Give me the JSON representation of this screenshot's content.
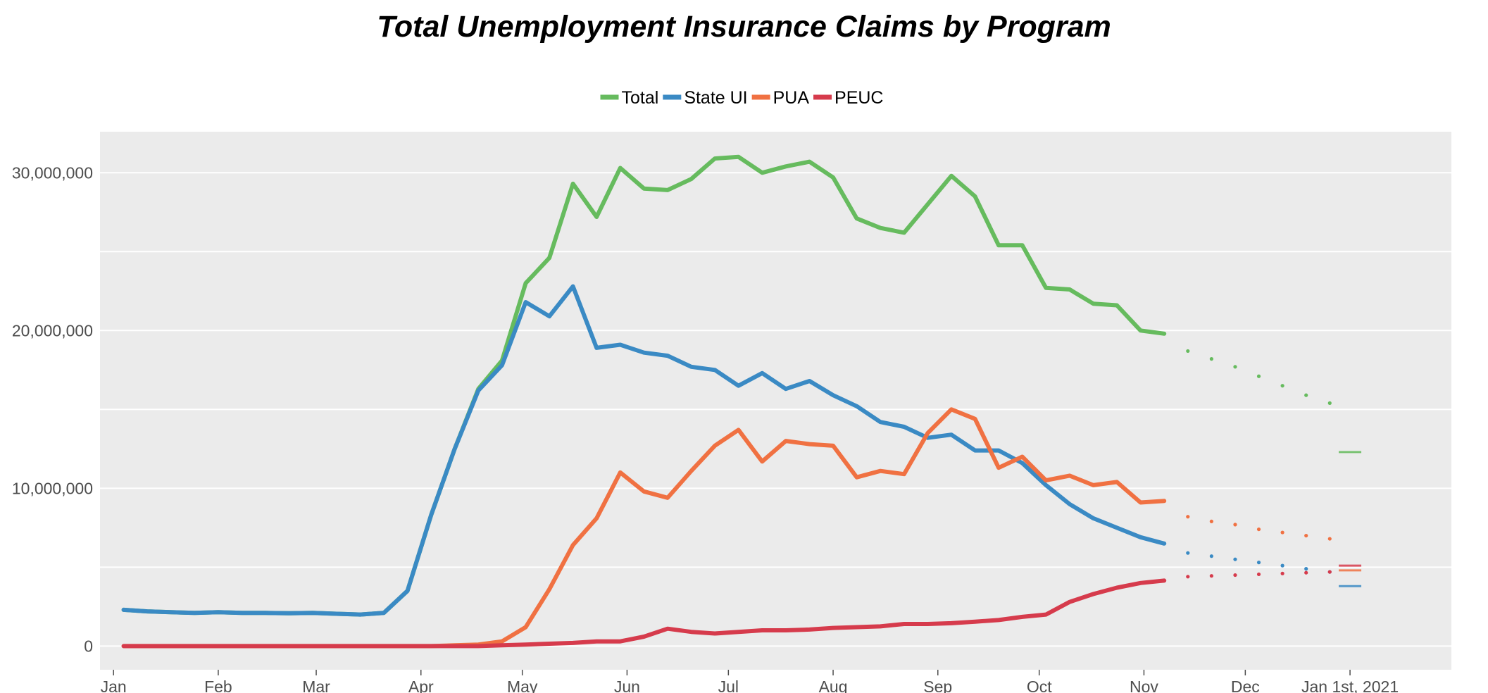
{
  "chart_data": {
    "type": "line",
    "title": "Total Unemployment Insurance Claims by Program",
    "xlabel": "",
    "ylabel": "",
    "ylim": [
      -1500000,
      32600000
    ],
    "y_ticks": [
      0,
      10000000,
      20000000,
      30000000
    ],
    "y_tick_labels": [
      "0",
      "10,000,000",
      "20,000,000",
      "30,000,000"
    ],
    "x_domain": [
      "2019-12-28",
      "2021-01-31"
    ],
    "x_ticks": [
      "2020-01-01",
      "2020-02-01",
      "2020-03-01",
      "2020-04-01",
      "2020-05-01",
      "2020-06-01",
      "2020-07-01",
      "2020-08-01",
      "2020-09-01",
      "2020-10-01",
      "2020-11-01",
      "2020-12-01",
      "2021-01-01"
    ],
    "x_tick_labels": [
      "Jan",
      "Feb",
      "Mar",
      "Apr",
      "May",
      "Jun",
      "Jul",
      "Aug",
      "Sep",
      "Oct",
      "Nov",
      "Dec",
      "Jan 1st, 2021"
    ],
    "grid": true,
    "legend_position": "top-center",
    "dates": [
      "2020-01-04",
      "2020-01-11",
      "2020-01-18",
      "2020-01-25",
      "2020-02-01",
      "2020-02-08",
      "2020-02-15",
      "2020-02-22",
      "2020-02-29",
      "2020-03-07",
      "2020-03-14",
      "2020-03-21",
      "2020-03-28",
      "2020-04-04",
      "2020-04-11",
      "2020-04-18",
      "2020-04-25",
      "2020-05-02",
      "2020-05-09",
      "2020-05-16",
      "2020-05-23",
      "2020-05-30",
      "2020-06-06",
      "2020-06-13",
      "2020-06-20",
      "2020-06-27",
      "2020-07-04",
      "2020-07-11",
      "2020-07-18",
      "2020-07-25",
      "2020-08-01",
      "2020-08-08",
      "2020-08-15",
      "2020-08-22",
      "2020-08-29",
      "2020-09-05",
      "2020-09-12",
      "2020-09-19",
      "2020-09-26",
      "2020-10-03",
      "2020-10-10",
      "2020-10-17",
      "2020-10-24",
      "2020-10-31",
      "2020-11-07"
    ],
    "forecast_dates": [
      "2020-11-07",
      "2020-11-14",
      "2020-11-21",
      "2020-11-28",
      "2020-12-05",
      "2020-12-12",
      "2020-12-19",
      "2020-12-26"
    ],
    "series": [
      {
        "name": "Total",
        "color": "#66bb5e",
        "values": [
          2300000,
          2200000,
          2150000,
          2100000,
          2150000,
          2100000,
          2100000,
          2080000,
          2100000,
          2050000,
          2000000,
          2100000,
          3500000,
          8300000,
          12500000,
          16300000,
          18100000,
          23000000,
          24600000,
          29300000,
          27200000,
          30300000,
          29000000,
          28900000,
          29600000,
          30900000,
          31000000,
          30000000,
          30400000,
          30700000,
          29700000,
          27100000,
          26500000,
          26200000,
          28000000,
          29800000,
          28500000,
          25400000,
          25400000,
          22700000,
          22600000,
          21700000,
          21600000,
          20000000,
          19800000
        ],
        "forecast": [
          18900000,
          18700000,
          18200000,
          17700000,
          17100000,
          16500000,
          15900000,
          15400000
        ],
        "end_marker": 12300000
      },
      {
        "name": "State UI",
        "color": "#3a8ac4",
        "values": [
          2300000,
          2200000,
          2150000,
          2100000,
          2150000,
          2100000,
          2100000,
          2080000,
          2100000,
          2050000,
          2000000,
          2100000,
          3500000,
          8300000,
          12500000,
          16200000,
          17800000,
          21800000,
          20900000,
          22800000,
          18900000,
          19100000,
          18600000,
          18400000,
          17700000,
          17500000,
          16500000,
          17300000,
          16300000,
          16800000,
          15900000,
          15200000,
          14200000,
          13900000,
          13200000,
          13400000,
          12400000,
          12400000,
          11600000,
          10200000,
          9000000,
          8100000,
          7500000,
          6900000,
          6500000
        ],
        "forecast": [
          6100000,
          5900000,
          5700000,
          5500000,
          5300000,
          5100000,
          4900000,
          4700000
        ],
        "end_marker": 3800000
      },
      {
        "name": "PUA",
        "color": "#f07142",
        "values": [
          0,
          0,
          0,
          0,
          0,
          0,
          0,
          0,
          0,
          0,
          0,
          0,
          0,
          0,
          50000,
          100000,
          300000,
          1200000,
          3600000,
          6400000,
          8100000,
          11000000,
          9800000,
          9400000,
          11100000,
          12700000,
          13700000,
          11700000,
          13000000,
          12800000,
          12700000,
          10700000,
          11100000,
          10900000,
          13500000,
          15000000,
          14400000,
          11300000,
          12000000,
          10500000,
          10800000,
          10200000,
          10400000,
          9100000,
          9200000
        ],
        "forecast": [
          8500000,
          8200000,
          7900000,
          7700000,
          7400000,
          7200000,
          7000000,
          6800000
        ],
        "end_marker": 4800000
      },
      {
        "name": "PEUC",
        "color": "#d63b4c",
        "values": [
          0,
          0,
          0,
          0,
          0,
          0,
          0,
          0,
          0,
          0,
          0,
          0,
          0,
          0,
          0,
          0,
          50000,
          100000,
          150000,
          200000,
          300000,
          300000,
          600000,
          1100000,
          900000,
          800000,
          900000,
          1000000,
          1000000,
          1050000,
          1150000,
          1200000,
          1250000,
          1400000,
          1400000,
          1450000,
          1550000,
          1650000,
          1850000,
          2000000,
          2800000,
          3300000,
          3700000,
          4000000,
          4150000
        ],
        "forecast": [
          4350000,
          4400000,
          4450000,
          4500000,
          4550000,
          4600000,
          4650000,
          4700000
        ],
        "end_marker": 5100000
      }
    ]
  }
}
